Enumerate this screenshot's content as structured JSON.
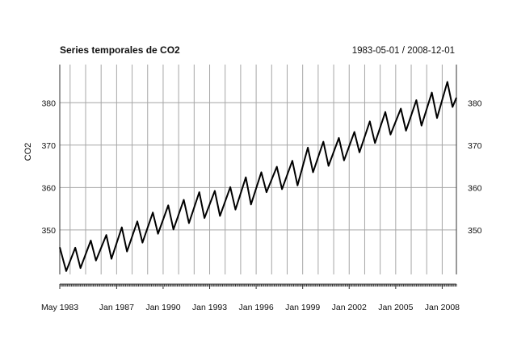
{
  "chart_data": {
    "type": "line",
    "title": "Series temporales de CO2",
    "date_range": "1983-05-01 / 2008-12-01",
    "ylabel": "CO2",
    "xlabel": "",
    "x_ticks": [
      {
        "label": "May 1983",
        "date": "1983-05-01"
      },
      {
        "label": "Jan 1987",
        "date": "1987-01-01"
      },
      {
        "label": "Jan 1990",
        "date": "1990-01-01"
      },
      {
        "label": "Jan 1993",
        "date": "1993-01-01"
      },
      {
        "label": "Jan 1996",
        "date": "1996-01-01"
      },
      {
        "label": "Jan 1999",
        "date": "1999-01-01"
      },
      {
        "label": "Jan 2002",
        "date": "2002-01-01"
      },
      {
        "label": "Jan 2005",
        "date": "2005-01-01"
      },
      {
        "label": "Jan 2008",
        "date": "2008-01-01"
      }
    ],
    "y_ticks": [
      350,
      360,
      370,
      380
    ],
    "xlim": [
      "1983-05-01",
      "2008-12-01"
    ],
    "ylim": [
      339.5,
      389
    ],
    "grid": "vertical",
    "series": [
      {
        "values_note_free": true,
        "points": [
          {
            "x": "1983-05",
            "y": 345.9
          },
          {
            "x": "1983-08",
            "y": 342.5
          },
          {
            "x": "1983-10",
            "y": 340.3
          },
          {
            "x": "1984-05",
            "y": 345.8
          },
          {
            "x": "1984-09",
            "y": 341.0
          },
          {
            "x": "1985-05",
            "y": 347.5
          },
          {
            "x": "1985-09",
            "y": 342.8
          },
          {
            "x": "1986-05",
            "y": 348.8
          },
          {
            "x": "1986-09",
            "y": 343.2
          },
          {
            "x": "1987-05",
            "y": 350.6
          },
          {
            "x": "1987-09",
            "y": 344.9
          },
          {
            "x": "1988-05",
            "y": 352.0
          },
          {
            "x": "1988-09",
            "y": 347.0
          },
          {
            "x": "1989-05",
            "y": 354.1
          },
          {
            "x": "1989-09",
            "y": 349.1
          },
          {
            "x": "1990-05",
            "y": 355.8
          },
          {
            "x": "1990-09",
            "y": 350.1
          },
          {
            "x": "1991-05",
            "y": 357.1
          },
          {
            "x": "1991-09",
            "y": 351.6
          },
          {
            "x": "1992-05",
            "y": 358.9
          },
          {
            "x": "1992-09",
            "y": 352.8
          },
          {
            "x": "1993-05",
            "y": 359.2
          },
          {
            "x": "1993-09",
            "y": 353.3
          },
          {
            "x": "1994-05",
            "y": 360.1
          },
          {
            "x": "1994-09",
            "y": 354.8
          },
          {
            "x": "1995-05",
            "y": 362.4
          },
          {
            "x": "1995-09",
            "y": 356.0
          },
          {
            "x": "1996-05",
            "y": 363.6
          },
          {
            "x": "1996-09",
            "y": 358.9
          },
          {
            "x": "1997-05",
            "y": 364.9
          },
          {
            "x": "1997-09",
            "y": 359.6
          },
          {
            "x": "1998-05",
            "y": 366.3
          },
          {
            "x": "1998-09",
            "y": 360.5
          },
          {
            "x": "1999-05",
            "y": 369.4
          },
          {
            "x": "1999-09",
            "y": 363.6
          },
          {
            "x": "2000-05",
            "y": 370.8
          },
          {
            "x": "2000-09",
            "y": 365.1
          },
          {
            "x": "2001-05",
            "y": 371.7
          },
          {
            "x": "2001-09",
            "y": 366.4
          },
          {
            "x": "2002-05",
            "y": 373.1
          },
          {
            "x": "2002-09",
            "y": 368.3
          },
          {
            "x": "2003-05",
            "y": 375.6
          },
          {
            "x": "2003-09",
            "y": 370.5
          },
          {
            "x": "2004-05",
            "y": 377.8
          },
          {
            "x": "2004-09",
            "y": 372.5
          },
          {
            "x": "2005-05",
            "y": 378.6
          },
          {
            "x": "2005-09",
            "y": 373.4
          },
          {
            "x": "2006-05",
            "y": 380.6
          },
          {
            "x": "2006-09",
            "y": 374.6
          },
          {
            "x": "2007-05",
            "y": 382.4
          },
          {
            "x": "2007-09",
            "y": 376.4
          },
          {
            "x": "2008-05",
            "y": 384.9
          },
          {
            "x": "2008-09",
            "y": 379.0
          },
          {
            "x": "2008-12",
            "y": 381.2
          }
        ]
      }
    ]
  }
}
